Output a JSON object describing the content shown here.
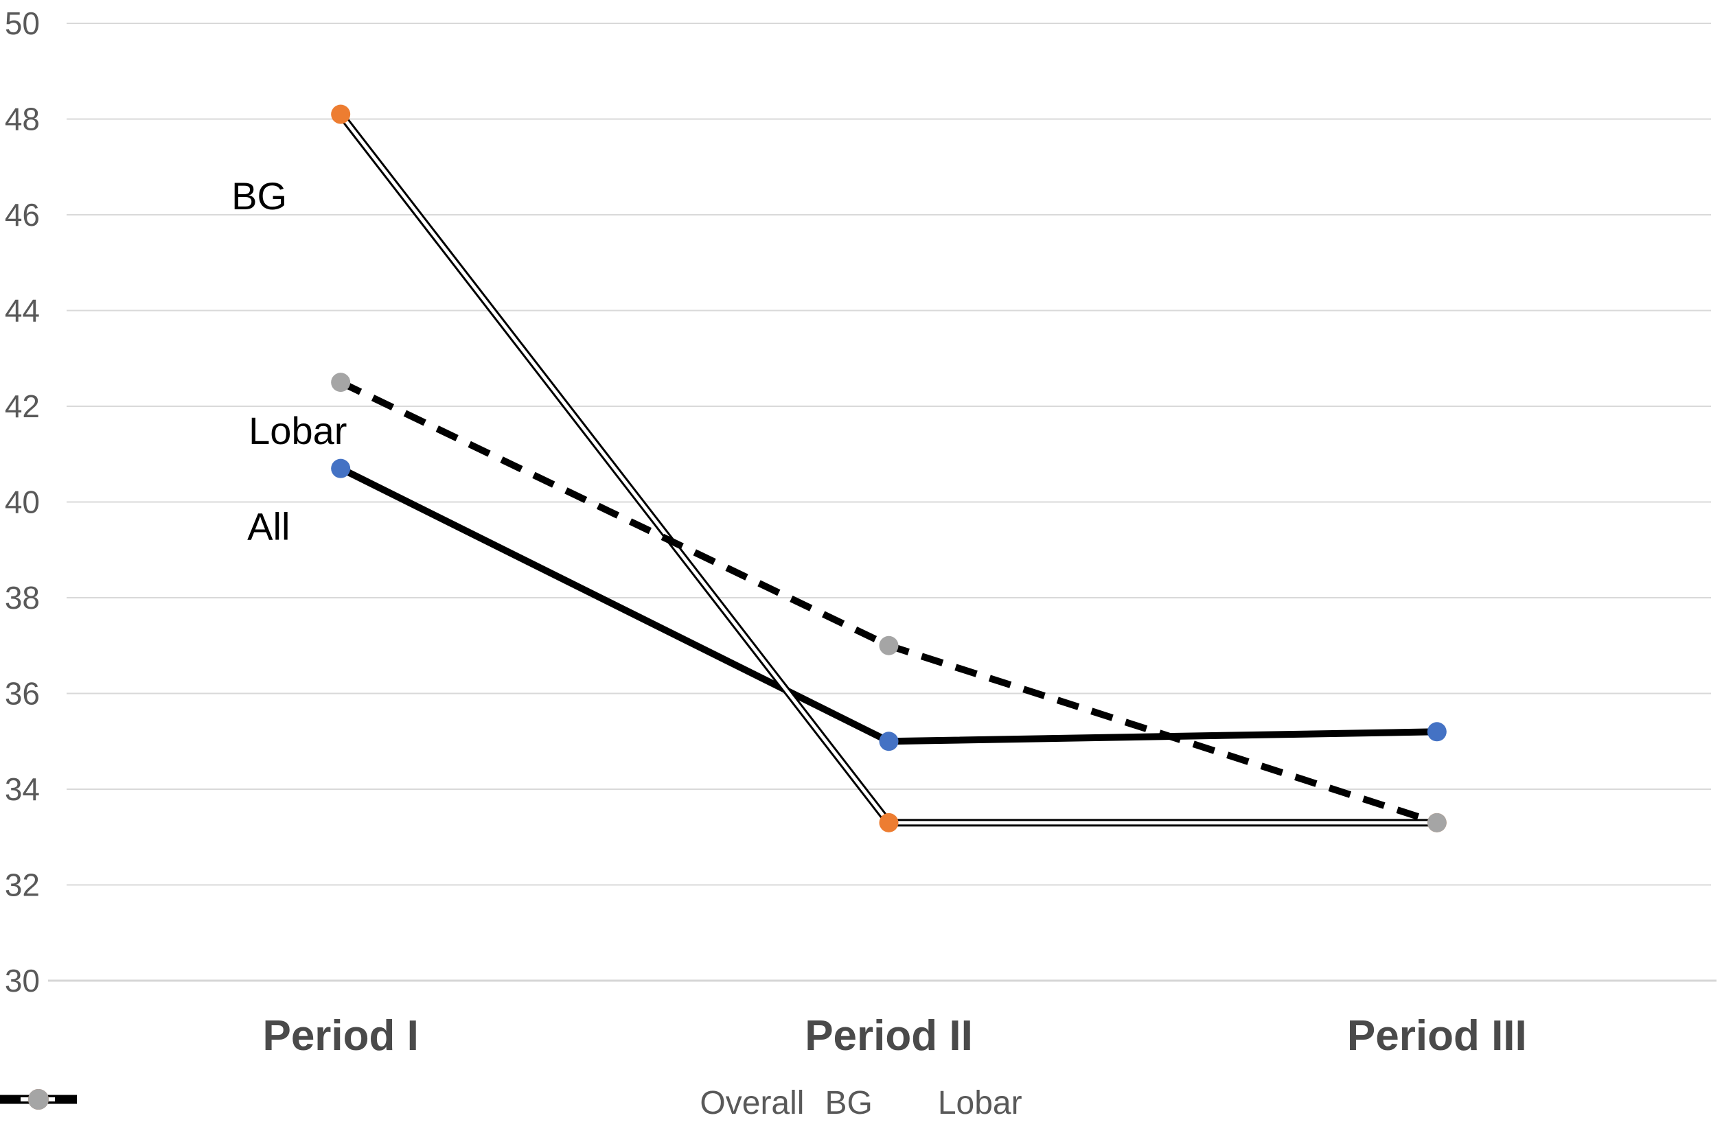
{
  "chart_data": {
    "type": "line",
    "categories": [
      "Period I",
      "Period II",
      "Period III"
    ],
    "series": [
      {
        "name": "Overall",
        "values": [
          40.7,
          35.0,
          35.2
        ],
        "line_style": "solid",
        "marker_color": "#4472C4"
      },
      {
        "name": "BG",
        "values": [
          48.1,
          33.3,
          33.3
        ],
        "line_style": "double",
        "marker_color": "#ED7D31"
      },
      {
        "name": "Lobar",
        "values": [
          42.5,
          37.0,
          33.3
        ],
        "line_style": "dashed",
        "marker_color": "#A5A5A5"
      }
    ],
    "annotations": [
      {
        "text": "BG",
        "category_index": 0,
        "value": 46.4,
        "dx": -159
      },
      {
        "text": "Lobar",
        "category_index": 0,
        "value": 41.5,
        "dx": -134
      },
      {
        "text": "All",
        "category_index": 0,
        "value": 39.5,
        "dx": -136
      }
    ],
    "title": "",
    "xlabel": "",
    "ylabel": "",
    "ylim": [
      30,
      50
    ],
    "ytick_step": 2,
    "ytick_labels": [
      "50",
      "48",
      "46",
      "44",
      "42",
      "40",
      "38",
      "36",
      "34",
      "32",
      "30"
    ],
    "grid": true,
    "legend_position": "bottom",
    "line_color": "#000000",
    "gridline_color": "#D9D9D9",
    "axis_line_color": "#D6D6D6",
    "tick_label_color": "#595959",
    "category_label_color": "#4A4A4A",
    "annotation_color": "#000000",
    "legend_text_color": "#595959"
  }
}
